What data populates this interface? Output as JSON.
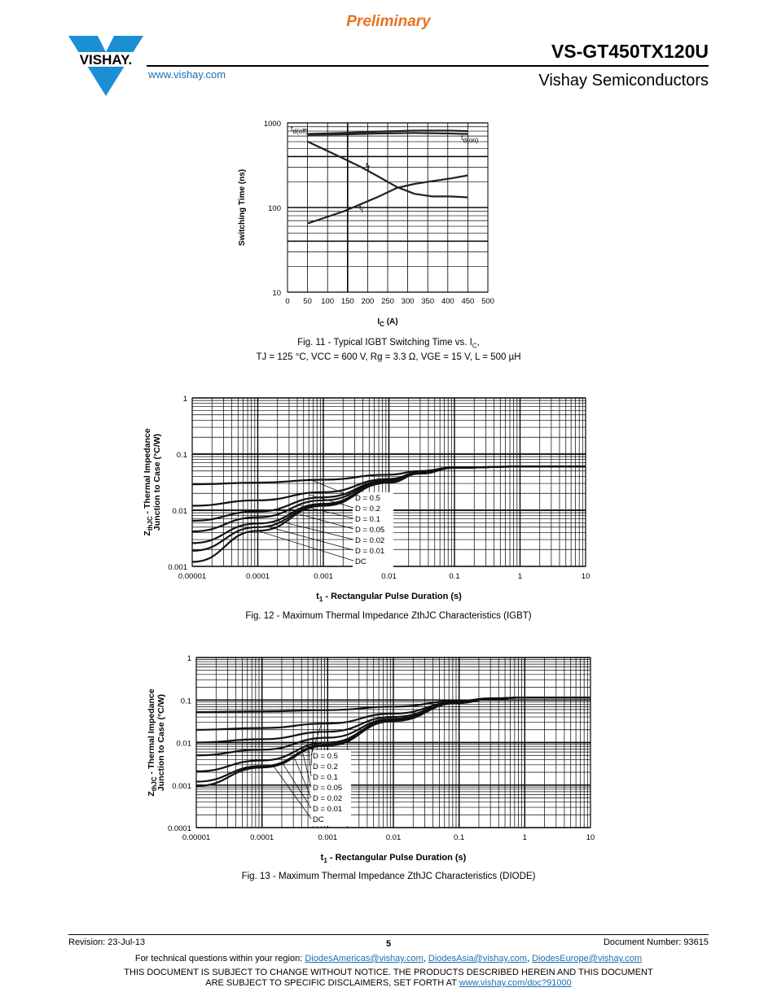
{
  "header": {
    "preliminary": "Preliminary",
    "part_number": "VS-GT450TX120U",
    "manufacturer": "Vishay Semiconductors",
    "website": "www.vishay.com",
    "logo_text": "VISHAY."
  },
  "fig11": {
    "caption_line1_a": "Fig. 11 - Typical IGBT Switching Time vs. I",
    "caption_line1_sub": "C",
    "caption_line1_b": ",",
    "caption_line2": "TJ = 125 °C, VCC = 600 V, Rg = 3.3 Ω, VGE = 15 V, L = 500 µH",
    "chart_data": {
      "type": "line",
      "xlabel": "IC (A)",
      "ylabel": "Switching Time (ns)",
      "xlim": [
        0,
        500
      ],
      "ylim": [
        10,
        1000
      ],
      "yscale": "log",
      "x_ticks": [
        "0",
        "50",
        "100",
        "150",
        "200",
        "250",
        "300",
        "350",
        "400",
        "450",
        "500"
      ],
      "y_ticks": [
        "10",
        "100",
        "1000"
      ],
      "series": [
        {
          "name": "td(off)",
          "x": [
            0,
            100,
            200,
            300,
            400,
            450
          ],
          "y": [
            740,
            760,
            790,
            810,
            810,
            800
          ]
        },
        {
          "name": "td(on)",
          "x": [
            0,
            100,
            200,
            300,
            400,
            450
          ],
          "y": [
            720,
            730,
            750,
            760,
            750,
            740
          ]
        },
        {
          "name": "tf",
          "x": [
            0,
            100,
            150,
            200,
            250,
            300,
            350,
            400,
            450
          ],
          "y": [
            600,
            380,
            300,
            230,
            175,
            145,
            135,
            135,
            132
          ]
        },
        {
          "name": "tr",
          "x": [
            0,
            100,
            150,
            200,
            250,
            300,
            350,
            400,
            450
          ],
          "y": [
            65,
            90,
            110,
            135,
            170,
            190,
            205,
            220,
            240
          ]
        }
      ],
      "labels": {
        "td_off": "td(off)",
        "td_on": "td(on)",
        "tf": "tf",
        "tr": "tr"
      }
    }
  },
  "fig12": {
    "caption": "Fig. 12 - Maximum Thermal Impedance ZthJC Characteristics (IGBT)",
    "chart_data": {
      "type": "line",
      "xscale": "log",
      "yscale": "log",
      "xlim": [
        1e-05,
        10
      ],
      "ylim": [
        0.001,
        1
      ],
      "xlabel": "t1 - Rectangular Pulse Duration (s)",
      "ylabel_line1": "ZthJC - Thermal Impedance",
      "ylabel_line2": "Junction to Case (°C/W)",
      "x_ticks": [
        "0.00001",
        "0.0001",
        "0.001",
        "0.01",
        "0.1",
        "1",
        "10"
      ],
      "y_ticks": [
        "0.001",
        "0.01",
        "0.1",
        "1"
      ],
      "legend": [
        "D = 0.5",
        "D = 0.2",
        "D = 0.1",
        "D = 0.05",
        "D = 0.02",
        "D = 0.01",
        "DC"
      ],
      "series": [
        {
          "name": "D = 0.5",
          "x": [
            1e-05,
            0.0001,
            0.001,
            0.01,
            0.03,
            0.1,
            1,
            10
          ],
          "y": [
            0.029,
            0.031,
            0.035,
            0.043,
            0.05,
            0.058,
            0.06,
            0.06
          ]
        },
        {
          "name": "D = 0.2",
          "x": [
            1e-05,
            0.0001,
            0.001,
            0.01,
            0.03,
            0.1,
            1,
            10
          ],
          "y": [
            0.012,
            0.015,
            0.021,
            0.036,
            0.047,
            0.057,
            0.06,
            0.06
          ]
        },
        {
          "name": "D = 0.1",
          "x": [
            1e-05,
            0.0001,
            0.001,
            0.01,
            0.03,
            0.1,
            1,
            10
          ],
          "y": [
            0.0065,
            0.0095,
            0.017,
            0.034,
            0.046,
            0.057,
            0.06,
            0.06
          ]
        },
        {
          "name": "D = 0.05",
          "x": [
            1e-05,
            0.0001,
            0.001,
            0.01,
            0.03,
            0.1,
            1,
            10
          ],
          "y": [
            0.0042,
            0.0075,
            0.015,
            0.033,
            0.046,
            0.057,
            0.06,
            0.06
          ]
        },
        {
          "name": "D = 0.02",
          "x": [
            1e-05,
            0.0001,
            0.001,
            0.01,
            0.03,
            0.1,
            1,
            10
          ],
          "y": [
            0.0026,
            0.0058,
            0.013,
            0.032,
            0.045,
            0.057,
            0.06,
            0.06
          ]
        },
        {
          "name": "D = 0.01",
          "x": [
            1e-05,
            0.0001,
            0.001,
            0.01,
            0.03,
            0.1,
            1,
            10
          ],
          "y": [
            0.0019,
            0.005,
            0.0125,
            0.032,
            0.045,
            0.057,
            0.06,
            0.06
          ]
        },
        {
          "name": "DC",
          "x": [
            1e-05,
            0.0001,
            0.001,
            0.01,
            0.03,
            0.1,
            1,
            10
          ],
          "y": [
            0.0012,
            0.0043,
            0.012,
            0.031,
            0.045,
            0.057,
            0.06,
            0.06
          ]
        }
      ]
    }
  },
  "fig13": {
    "caption": "Fig. 13 - Maximum Thermal Impedance ZthJC Characteristics (DIODE)",
    "chart_data": {
      "type": "line",
      "xscale": "log",
      "yscale": "log",
      "xlim": [
        1e-05,
        10
      ],
      "ylim": [
        0.0001,
        1
      ],
      "xlabel": "t1 - Rectangular Pulse Duration (s)",
      "ylabel_line1": "ZthJC - Thermal Impedance",
      "ylabel_line2": "Junction to Case (°C/W)",
      "x_ticks": [
        "0.00001",
        "0.0001",
        "0.001",
        "0.01",
        "0.1",
        "1",
        "10"
      ],
      "y_ticks": [
        "0.0001",
        "0.001",
        "0.01",
        "0.1",
        "1"
      ],
      "legend": [
        "D = 0.5",
        "D = 0.2",
        "D = 0.1",
        "D = 0.05",
        "D = 0.02",
        "D = 0.01",
        "DC"
      ],
      "series": [
        {
          "name": "D = 0.5",
          "x": [
            1e-05,
            0.0001,
            0.001,
            0.01,
            0.1,
            0.3,
            1,
            10
          ],
          "y": [
            0.052,
            0.054,
            0.058,
            0.07,
            0.095,
            0.11,
            0.115,
            0.115
          ]
        },
        {
          "name": "D = 0.2",
          "x": [
            1e-05,
            0.0001,
            0.001,
            0.01,
            0.1,
            0.3,
            1,
            10
          ],
          "y": [
            0.02,
            0.022,
            0.028,
            0.048,
            0.09,
            0.108,
            0.115,
            0.115
          ]
        },
        {
          "name": "D = 0.1",
          "x": [
            1e-05,
            0.0001,
            0.001,
            0.01,
            0.1,
            0.3,
            1,
            10
          ],
          "y": [
            0.01,
            0.012,
            0.018,
            0.04,
            0.088,
            0.107,
            0.115,
            0.115
          ]
        },
        {
          "name": "D = 0.05",
          "x": [
            1e-05,
            0.0001,
            0.001,
            0.01,
            0.1,
            0.3,
            1,
            10
          ],
          "y": [
            0.005,
            0.0068,
            0.013,
            0.036,
            0.087,
            0.107,
            0.115,
            0.115
          ]
        },
        {
          "name": "D = 0.02",
          "x": [
            1e-05,
            0.0001,
            0.001,
            0.01,
            0.1,
            0.3,
            1,
            10
          ],
          "y": [
            0.0021,
            0.0038,
            0.01,
            0.034,
            0.086,
            0.106,
            0.115,
            0.115
          ]
        },
        {
          "name": "D = 0.01",
          "x": [
            1e-05,
            0.0001,
            0.001,
            0.01,
            0.1,
            0.3,
            1,
            10
          ],
          "y": [
            0.0012,
            0.0028,
            0.009,
            0.033,
            0.086,
            0.106,
            0.115,
            0.115
          ]
        },
        {
          "name": "DC",
          "x": [
            1e-05,
            0.0001,
            0.001,
            0.01,
            0.1,
            0.3,
            1,
            10
          ],
          "y": [
            0.00095,
            0.0026,
            0.0085,
            0.032,
            0.085,
            0.106,
            0.115,
            0.115
          ]
        }
      ]
    }
  },
  "footer": {
    "revision": "Revision: 23-Jul-13",
    "page": "5",
    "document_number": "Document Number: 93615",
    "contact_prefix": "For technical questions within your region: ",
    "email_americas": "DiodesAmericas@vishay.com",
    "email_asia": "DiodesAsia@vishay.com",
    "email_europe": "DiodesEurope@vishay.com",
    "sep": ", ",
    "disclaimer_line1": "THIS DOCUMENT IS SUBJECT TO CHANGE WITHOUT NOTICE. THE PRODUCTS DESCRIBED HEREIN AND THIS DOCUMENT",
    "disclaimer_line2_prefix": "ARE SUBJECT TO SPECIFIC DISCLAIMERS, SET FORTH AT ",
    "disclaimer_link": "www.vishay.com/doc?91000"
  },
  "colors": {
    "accent": "#e8731f",
    "logo": "#1a8fd4",
    "link": "#1a6fb3"
  }
}
